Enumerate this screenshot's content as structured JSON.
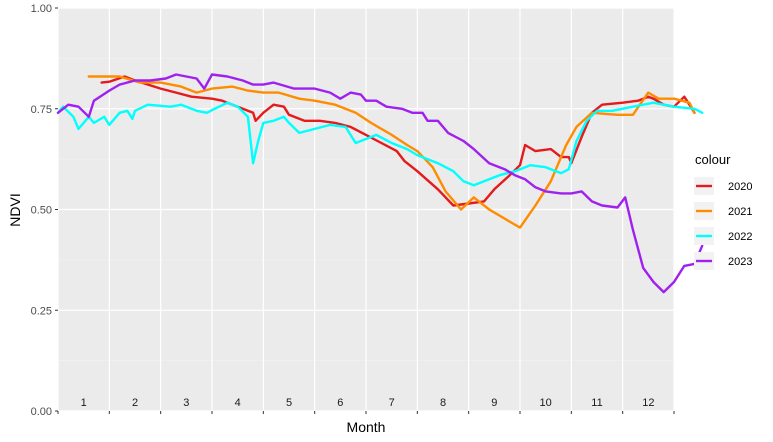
{
  "chart_data": {
    "type": "line",
    "title": "",
    "xlabel": "Month",
    "ylabel": "NDVI",
    "ylim": [
      0,
      1
    ],
    "xlim": [
      0,
      12
    ],
    "y_ticks": [
      0,
      0.25,
      0.5,
      0.75,
      1
    ],
    "y_tick_labels": [
      "0.00",
      "0.25",
      "0.50",
      "0.75",
      "1.00"
    ],
    "month_labels": [
      "1",
      "2",
      "3",
      "4",
      "5",
      "6",
      "7",
      "8",
      "9",
      "10",
      "11",
      "12"
    ],
    "grid": true,
    "legend": {
      "title": "colour",
      "position": "right"
    },
    "series": [
      {
        "name": "2020",
        "color": "#e41a1c",
        "points": [
          [
            0.85,
            0.815
          ],
          [
            1.0,
            0.817
          ],
          [
            1.3,
            0.83
          ],
          [
            1.5,
            0.82
          ],
          [
            2.0,
            0.8
          ],
          [
            2.3,
            0.79
          ],
          [
            2.6,
            0.78
          ],
          [
            3.0,
            0.775
          ],
          [
            3.2,
            0.77
          ],
          [
            3.5,
            0.755
          ],
          [
            3.8,
            0.74
          ],
          [
            3.85,
            0.72
          ],
          [
            4.0,
            0.74
          ],
          [
            4.2,
            0.76
          ],
          [
            4.4,
            0.755
          ],
          [
            4.5,
            0.735
          ],
          [
            4.8,
            0.72
          ],
          [
            5.1,
            0.72
          ],
          [
            5.4,
            0.715
          ],
          [
            5.7,
            0.705
          ],
          [
            6.0,
            0.685
          ],
          [
            6.3,
            0.665
          ],
          [
            6.6,
            0.645
          ],
          [
            6.75,
            0.62
          ],
          [
            7.0,
            0.595
          ],
          [
            7.4,
            0.55
          ],
          [
            7.7,
            0.51
          ],
          [
            8.0,
            0.515
          ],
          [
            8.3,
            0.52
          ],
          [
            8.5,
            0.55
          ],
          [
            8.8,
            0.585
          ],
          [
            9.0,
            0.61
          ],
          [
            9.1,
            0.66
          ],
          [
            9.3,
            0.645
          ],
          [
            9.6,
            0.65
          ],
          [
            9.8,
            0.63
          ],
          [
            9.95,
            0.63
          ],
          [
            10.0,
            0.615
          ],
          [
            10.2,
            0.68
          ],
          [
            10.4,
            0.74
          ],
          [
            10.6,
            0.76
          ],
          [
            11.0,
            0.765
          ],
          [
            11.3,
            0.77
          ],
          [
            11.5,
            0.78
          ],
          [
            11.6,
            0.775
          ],
          [
            11.8,
            0.76
          ],
          [
            12.0,
            0.755
          ],
          [
            12.2,
            0.78
          ],
          [
            12.4,
            0.74
          ]
        ]
      },
      {
        "name": "2021",
        "color": "#ff8c00",
        "points": [
          [
            0.6,
            0.83
          ],
          [
            1.2,
            0.83
          ],
          [
            1.6,
            0.815
          ],
          [
            2.0,
            0.815
          ],
          [
            2.4,
            0.805
          ],
          [
            2.7,
            0.79
          ],
          [
            3.0,
            0.8
          ],
          [
            3.4,
            0.805
          ],
          [
            3.7,
            0.795
          ],
          [
            4.0,
            0.79
          ],
          [
            4.3,
            0.79
          ],
          [
            4.7,
            0.775
          ],
          [
            5.0,
            0.77
          ],
          [
            5.4,
            0.76
          ],
          [
            5.8,
            0.74
          ],
          [
            6.1,
            0.715
          ],
          [
            6.5,
            0.685
          ],
          [
            6.8,
            0.66
          ],
          [
            7.0,
            0.645
          ],
          [
            7.3,
            0.605
          ],
          [
            7.55,
            0.545
          ],
          [
            7.85,
            0.5
          ],
          [
            8.1,
            0.53
          ],
          [
            8.4,
            0.5
          ],
          [
            8.8,
            0.47
          ],
          [
            9.0,
            0.455
          ],
          [
            9.3,
            0.51
          ],
          [
            9.6,
            0.57
          ],
          [
            9.9,
            0.66
          ],
          [
            10.1,
            0.705
          ],
          [
            10.4,
            0.74
          ],
          [
            10.9,
            0.735
          ],
          [
            11.2,
            0.735
          ],
          [
            11.5,
            0.79
          ],
          [
            11.7,
            0.775
          ],
          [
            12.0,
            0.775
          ],
          [
            12.3,
            0.765
          ],
          [
            12.4,
            0.74
          ]
        ]
      },
      {
        "name": "2022",
        "color": "#00ffff",
        "points": [
          [
            0.0,
            0.74
          ],
          [
            0.1,
            0.755
          ],
          [
            0.3,
            0.73
          ],
          [
            0.4,
            0.7
          ],
          [
            0.6,
            0.73
          ],
          [
            0.7,
            0.715
          ],
          [
            0.9,
            0.73
          ],
          [
            1.0,
            0.71
          ],
          [
            1.2,
            0.74
          ],
          [
            1.35,
            0.745
          ],
          [
            1.45,
            0.725
          ],
          [
            1.5,
            0.745
          ],
          [
            1.75,
            0.76
          ],
          [
            2.2,
            0.755
          ],
          [
            2.4,
            0.76
          ],
          [
            2.7,
            0.745
          ],
          [
            2.9,
            0.74
          ],
          [
            3.05,
            0.75
          ],
          [
            3.3,
            0.765
          ],
          [
            3.5,
            0.755
          ],
          [
            3.7,
            0.73
          ],
          [
            3.8,
            0.615
          ],
          [
            3.9,
            0.67
          ],
          [
            4.0,
            0.715
          ],
          [
            4.2,
            0.72
          ],
          [
            4.4,
            0.73
          ],
          [
            4.5,
            0.715
          ],
          [
            4.7,
            0.69
          ],
          [
            5.0,
            0.7
          ],
          [
            5.3,
            0.71
          ],
          [
            5.6,
            0.705
          ],
          [
            5.8,
            0.665
          ],
          [
            6.0,
            0.675
          ],
          [
            6.2,
            0.685
          ],
          [
            6.5,
            0.665
          ],
          [
            6.8,
            0.65
          ],
          [
            7.0,
            0.635
          ],
          [
            7.4,
            0.615
          ],
          [
            7.7,
            0.595
          ],
          [
            7.9,
            0.57
          ],
          [
            8.1,
            0.56
          ],
          [
            8.4,
            0.575
          ],
          [
            8.6,
            0.585
          ],
          [
            8.9,
            0.595
          ],
          [
            9.2,
            0.61
          ],
          [
            9.5,
            0.605
          ],
          [
            9.8,
            0.59
          ],
          [
            9.95,
            0.6
          ],
          [
            10.1,
            0.67
          ],
          [
            10.3,
            0.72
          ],
          [
            10.5,
            0.745
          ],
          [
            10.8,
            0.745
          ],
          [
            11.2,
            0.755
          ],
          [
            11.6,
            0.765
          ],
          [
            12.0,
            0.755
          ],
          [
            12.4,
            0.75
          ],
          [
            12.55,
            0.74
          ]
        ]
      },
      {
        "name": "2023",
        "color": "#a020f0",
        "points": [
          [
            0.0,
            0.74
          ],
          [
            0.2,
            0.76
          ],
          [
            0.4,
            0.755
          ],
          [
            0.6,
            0.73
          ],
          [
            0.7,
            0.77
          ],
          [
            1.0,
            0.795
          ],
          [
            1.2,
            0.81
          ],
          [
            1.5,
            0.82
          ],
          [
            1.8,
            0.82
          ],
          [
            2.1,
            0.825
          ],
          [
            2.3,
            0.835
          ],
          [
            2.5,
            0.83
          ],
          [
            2.7,
            0.825
          ],
          [
            2.85,
            0.8
          ],
          [
            3.0,
            0.835
          ],
          [
            3.3,
            0.83
          ],
          [
            3.6,
            0.82
          ],
          [
            3.8,
            0.81
          ],
          [
            4.0,
            0.81
          ],
          [
            4.2,
            0.815
          ],
          [
            4.6,
            0.8
          ],
          [
            5.0,
            0.8
          ],
          [
            5.3,
            0.79
          ],
          [
            5.5,
            0.775
          ],
          [
            5.7,
            0.79
          ],
          [
            5.9,
            0.785
          ],
          [
            6.0,
            0.77
          ],
          [
            6.2,
            0.77
          ],
          [
            6.4,
            0.755
          ],
          [
            6.7,
            0.75
          ],
          [
            6.9,
            0.74
          ],
          [
            7.1,
            0.74
          ],
          [
            7.2,
            0.72
          ],
          [
            7.4,
            0.72
          ],
          [
            7.6,
            0.69
          ],
          [
            7.9,
            0.67
          ],
          [
            8.1,
            0.65
          ],
          [
            8.4,
            0.615
          ],
          [
            8.7,
            0.6
          ],
          [
            8.9,
            0.585
          ],
          [
            9.1,
            0.575
          ],
          [
            9.3,
            0.555
          ],
          [
            9.5,
            0.545
          ],
          [
            9.8,
            0.54
          ],
          [
            10.0,
            0.54
          ],
          [
            10.2,
            0.545
          ],
          [
            10.4,
            0.52
          ],
          [
            10.6,
            0.51
          ],
          [
            10.9,
            0.505
          ],
          [
            11.05,
            0.53
          ],
          [
            11.2,
            0.45
          ],
          [
            11.4,
            0.355
          ],
          [
            11.6,
            0.32
          ],
          [
            11.8,
            0.295
          ],
          [
            12.0,
            0.32
          ],
          [
            12.2,
            0.36
          ],
          [
            12.4,
            0.365
          ],
          [
            12.55,
            0.41
          ]
        ]
      }
    ]
  }
}
